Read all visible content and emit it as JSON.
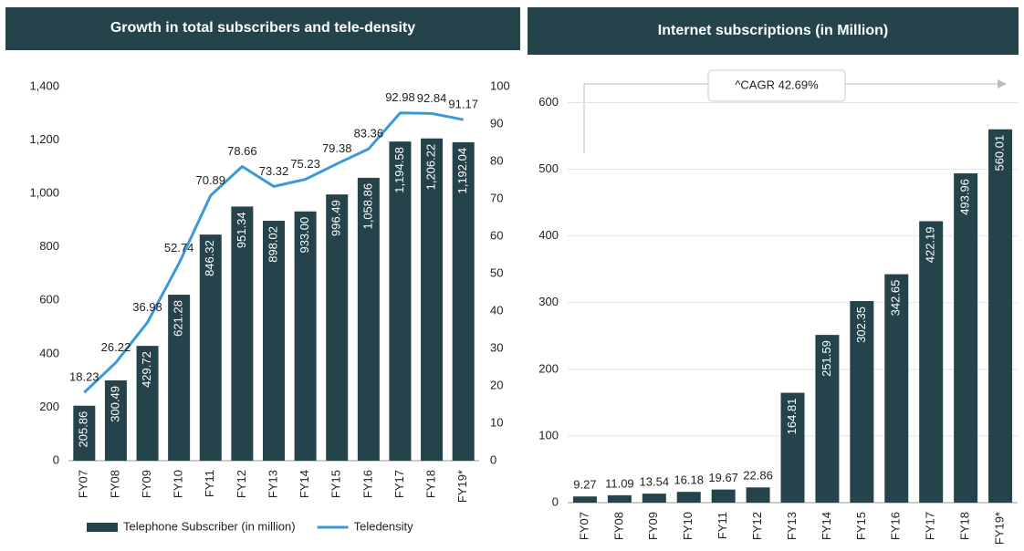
{
  "chart_data": [
    {
      "type": "bar",
      "title": "Growth in total subscribers and tele-density",
      "categories": [
        "FY07",
        "FY08",
        "FY09",
        "FY10",
        "FY11",
        "FY12",
        "FY13",
        "FY14",
        "FY15",
        "FY16",
        "FY17",
        "FY18",
        "FY19*"
      ],
      "series": [
        {
          "name": "Telephone Subscriber (in million)",
          "type": "bar",
          "color": "#24434a",
          "values": [
            205.86,
            300.49,
            429.72,
            621.28,
            846.32,
            951.34,
            898.02,
            933.0,
            996.49,
            1058.86,
            1194.58,
            1206.22,
            1192.04
          ],
          "value_labels": [
            "205.86",
            "300.49",
            "429.72",
            "621.28",
            "846.32",
            "951.34",
            "898.02",
            "933.00",
            "996.49",
            "1,058.86",
            "1,194.58",
            "1,206.22",
            "1,192.04"
          ]
        },
        {
          "name": "Teledensity",
          "type": "line",
          "axis": "y2",
          "color": "#3b9ad6",
          "values": [
            18.23,
            26.22,
            36.98,
            52.74,
            70.89,
            78.66,
            73.32,
            75.23,
            79.38,
            83.36,
            92.98,
            92.84,
            91.17
          ]
        }
      ],
      "ylim": [
        0,
        1400
      ],
      "yticks": [
        0,
        200,
        400,
        600,
        800,
        {
          "value": 1000,
          "label": "1,000"
        },
        {
          "value": 1200,
          "label": "1,200"
        },
        {
          "value": 1400,
          "label": "1,400"
        }
      ],
      "y2lim": [
        0,
        100
      ],
      "y2ticks": [
        0,
        10,
        20,
        30,
        40,
        50,
        60,
        70,
        80,
        90,
        100
      ],
      "grid": false,
      "legend": "bottom"
    },
    {
      "type": "bar",
      "title": "Internet subscriptions (in Million)",
      "annotation": "^CAGR 42.69%",
      "categories": [
        "FY07",
        "FY08",
        "FY09",
        "FY10",
        "FY11",
        "FY12",
        "FY13",
        "FY14",
        "FY15",
        "FY16",
        "FY17",
        "FY18",
        "FY19*"
      ],
      "series": [
        {
          "type": "bar",
          "color": "#24434a",
          "values": [
            9.27,
            11.09,
            13.54,
            16.18,
            19.67,
            22.86,
            164.81,
            251.59,
            302.35,
            342.65,
            422.19,
            493.96,
            560.01
          ]
        }
      ],
      "ylim": [
        0,
        650
      ],
      "yticks": [
        0,
        100,
        200,
        300,
        400,
        500,
        600
      ],
      "grid": true
    }
  ]
}
